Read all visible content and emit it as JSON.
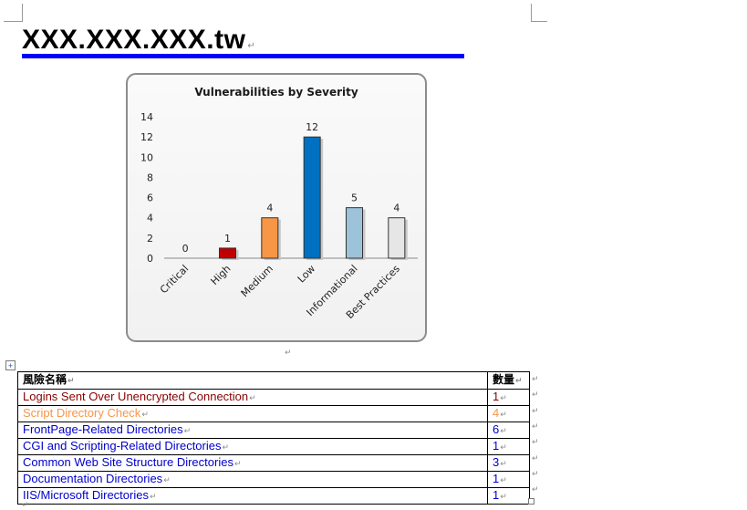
{
  "document": {
    "heading": "XXX.XXX.XXX.tw",
    "accent_color": "#0000ff",
    "paragraph_mark": "↵"
  },
  "chart_data": {
    "type": "bar",
    "title": "Vulnerabilities by Severity",
    "categories": [
      "Critical",
      "High",
      "Medium",
      "Low",
      "Informational",
      "Best Practices"
    ],
    "values": [
      0,
      1,
      4,
      12,
      5,
      4
    ],
    "colors": [
      "#c00000",
      "#c00000",
      "#f79646",
      "#0070c0",
      "#9dc3da",
      "#e6e6e6"
    ],
    "ylim": [
      0,
      14
    ],
    "yticks": [
      0,
      2,
      4,
      6,
      8,
      10,
      12,
      14
    ],
    "grid": false,
    "legend": false,
    "xlabel": "",
    "ylabel": ""
  },
  "table": {
    "header": {
      "name": "風險名稱",
      "count": "數量"
    },
    "rows": [
      {
        "name": "Logins Sent Over Unencrypted Connection",
        "count": "1",
        "color": "#8b0000"
      },
      {
        "name": "Script Directory Check",
        "count": "4",
        "color": "#f79646"
      },
      {
        "name": "FrontPage-Related Directories",
        "count": "6",
        "color": "#0000cc"
      },
      {
        "name": "CGI and Scripting-Related Directories",
        "count": "1",
        "color": "#0000cc"
      },
      {
        "name": "Common Web Site Structure Directories",
        "count": "3",
        "color": "#0000cc"
      },
      {
        "name": "Documentation Directories",
        "count": "1",
        "color": "#0000cc"
      },
      {
        "name": "IIS/Microsoft Directories",
        "count": "1",
        "color": "#0000cc"
      }
    ]
  }
}
